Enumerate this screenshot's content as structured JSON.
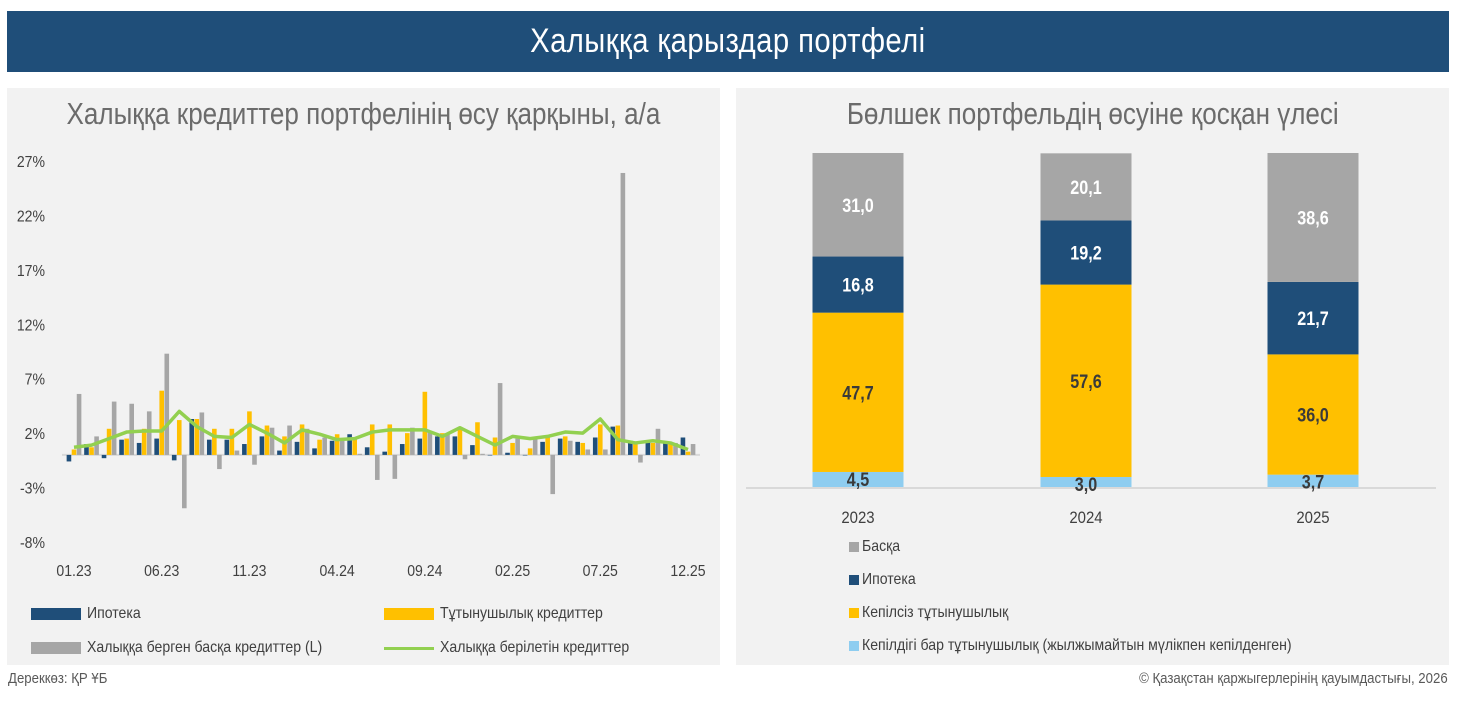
{
  "header": {
    "title": "Халыққа қарыздар портфелі"
  },
  "colors": {
    "mortgage": "#1f4e79",
    "consumer": "#ffc000",
    "other": "#a6a6a6",
    "total": "#92d050",
    "secured_consumer": "#8ecdf0",
    "panel_bg": "#f2f2f2",
    "banner": "#1f4e79"
  },
  "left_panel": {
    "title": "Халыққа кредиттер портфелінің өсу қарқыны, а/а",
    "legend": {
      "mortgage": "Ипотека",
      "consumer": "Тұтынушылық кредиттер",
      "other": "Халыққа берген басқа кредиттер (L)",
      "total": "Халыққа берілетін кредиттер"
    }
  },
  "right_panel": {
    "title": "Бөлшек портфельдің өсуіне қосқан үлесі",
    "legend": {
      "other": "Басқа",
      "mortgage": "Ипотека",
      "unsecured": "Кепілсіз тұтынушылық",
      "secured": "Кепілдігі бар тұтынушылық (жылжымайтын мүлікпен кепілденген)"
    }
  },
  "footer": {
    "source": "Дереккөз: ҚР ҰБ",
    "copyright": "© Қазақстан қаржыгерлерінің қауымдастығы, 2026"
  },
  "chart_data": [
    {
      "type": "bar",
      "title": "Халыққа кредиттер портфелінің өсу қарқыны, а/а",
      "xlabel": "",
      "ylabel": "",
      "ylim": [
        -8,
        27
      ],
      "yticks": [
        "27%",
        "22%",
        "17%",
        "12%",
        "7%",
        "2%",
        "-3%",
        "-8%"
      ],
      "ytick_values": [
        27,
        22,
        17,
        12,
        7,
        2,
        -3,
        -8
      ],
      "xtick_labels": [
        "01.23",
        "06.23",
        "11.23",
        "04.24",
        "09.24",
        "02.25",
        "07.25",
        "12.25"
      ],
      "xtick_indices": [
        0,
        5,
        10,
        15,
        20,
        25,
        30,
        35
      ],
      "grid": false,
      "legend_position": "bottom",
      "categories": [
        "01.23",
        "02.23",
        "03.23",
        "04.23",
        "05.23",
        "06.23",
        "07.23",
        "08.23",
        "09.23",
        "10.23",
        "11.23",
        "12.23",
        "01.24",
        "02.24",
        "03.24",
        "04.24",
        "05.24",
        "06.24",
        "07.24",
        "08.24",
        "09.24",
        "10.24",
        "11.24",
        "12.24",
        "01.25",
        "02.25",
        "03.25",
        "04.25",
        "05.25",
        "06.25",
        "07.25",
        "08.25",
        "09.25",
        "10.25",
        "11.25",
        "12.25"
      ],
      "series": [
        {
          "name": "Ипотека",
          "kind": "bar",
          "color_key": "mortgage",
          "values": [
            -0.6,
            1.0,
            -0.3,
            1.4,
            1.1,
            1.5,
            -0.5,
            3.3,
            1.4,
            1.4,
            1.0,
            1.7,
            0.4,
            1.2,
            0.6,
            1.3,
            1.9,
            0.7,
            0.3,
            1.0,
            1.5,
            1.7,
            1.7,
            0.9,
            0.0,
            0.2,
            0.0,
            1.2,
            1.5,
            1.2,
            1.6,
            2.6,
            1.3,
            1.3,
            1.1,
            1.6
          ]
        },
        {
          "name": "Тұтынушылық кредиттер",
          "kind": "bar",
          "color_key": "consumer",
          "values": [
            0.5,
            0.7,
            2.4,
            1.5,
            2.4,
            5.9,
            3.2,
            3.3,
            2.4,
            2.4,
            4.0,
            2.7,
            1.7,
            2.8,
            1.4,
            1.9,
            1.6,
            2.8,
            2.8,
            2.0,
            5.8,
            2.0,
            2.5,
            3.0,
            1.6,
            1.1,
            0.6,
            1.7,
            1.7,
            1.1,
            2.8,
            2.7,
            1.1,
            1.1,
            1.1,
            0.3
          ]
        },
        {
          "name": "Халыққа берген басқа кредиттер (L)",
          "kind": "bar",
          "color_key": "other",
          "values": [
            5.6,
            1.7,
            4.9,
            4.7,
            4.0,
            9.3,
            -4.9,
            3.9,
            -1.3,
            0.4,
            -0.9,
            2.5,
            2.7,
            2.4,
            1.6,
            1.5,
            0.1,
            -2.3,
            -2.2,
            2.5,
            2.1,
            2.0,
            -0.4,
            0.1,
            6.6,
            1.5,
            1.5,
            -3.6,
            1.3,
            0.5,
            0.5,
            25.9,
            -0.7,
            2.4,
            1.1,
            1.0
          ]
        },
        {
          "name": "Халыққа берілетін кредиттер",
          "kind": "line",
          "color_key": "total",
          "values": [
            0.7,
            0.9,
            1.5,
            2.1,
            2.2,
            2.2,
            4.0,
            2.6,
            1.7,
            1.6,
            2.8,
            2.0,
            1.1,
            2.3,
            1.9,
            1.4,
            1.5,
            2.1,
            2.3,
            2.3,
            2.3,
            1.7,
            2.5,
            1.7,
            0.9,
            1.7,
            1.5,
            1.7,
            2.1,
            2.0,
            3.3,
            1.4,
            1.1,
            1.3,
            1.1,
            0.5
          ]
        }
      ]
    },
    {
      "type": "bar",
      "stacked": true,
      "title": "Бөлшек портфельдің өсуіне қосқан үлесі",
      "categories": [
        "2023",
        "2024",
        "2025"
      ],
      "ylim": [
        0,
        100
      ],
      "legend_position": "bottom",
      "series": [
        {
          "name": "Кепілдігі бар тұтынушылық (жылжымайтын мүлікпен кепілденген)",
          "color_key": "secured_consumer",
          "values": [
            4.5,
            3.0,
            3.7
          ],
          "labels": [
            "4,5",
            "3,0",
            "3,7"
          ]
        },
        {
          "name": "Кепілсіз тұтынушылық",
          "color_key": "consumer",
          "values": [
            47.7,
            57.6,
            36.0
          ],
          "labels": [
            "47,7",
            "57,6",
            "36,0"
          ]
        },
        {
          "name": "Ипотека",
          "color_key": "mortgage",
          "values": [
            16.8,
            19.2,
            21.7
          ],
          "labels": [
            "16,8",
            "19,2",
            "21,7"
          ]
        },
        {
          "name": "Басқа",
          "color_key": "other",
          "values": [
            31.0,
            20.1,
            38.6
          ],
          "labels": [
            "31,0",
            "20,1",
            "38,6"
          ]
        }
      ]
    }
  ]
}
